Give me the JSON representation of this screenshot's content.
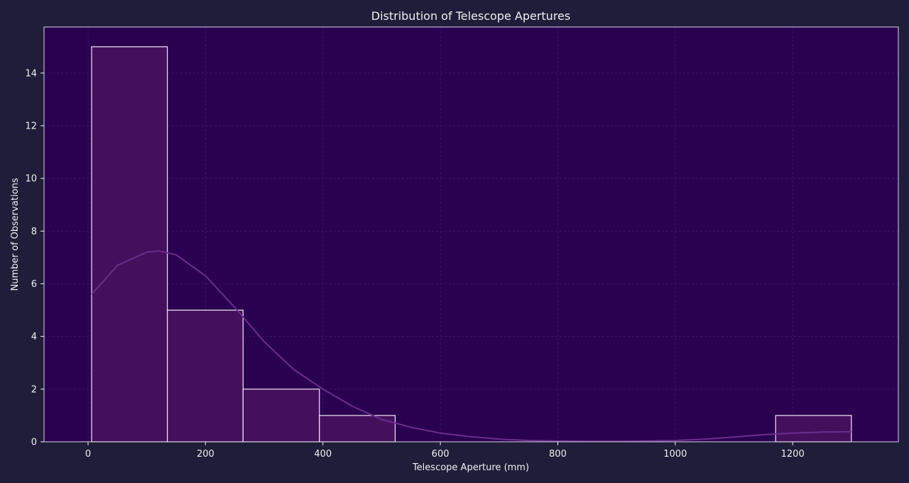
{
  "chart_data": {
    "type": "bar",
    "title": "Distribution of Telescope Apertures",
    "xlabel": "Telescope Aperture (mm)",
    "ylabel": "Number of Observations",
    "xlim": [
      -75,
      1380
    ],
    "ylim": [
      0,
      15.75
    ],
    "xticks": [
      0,
      200,
      400,
      600,
      800,
      1000,
      1200
    ],
    "yticks": [
      0,
      2,
      4,
      6,
      8,
      10,
      12,
      14
    ],
    "grid": true,
    "bins": [
      {
        "start": 6,
        "end": 135,
        "count": 15
      },
      {
        "start": 135,
        "end": 264,
        "count": 5
      },
      {
        "start": 264,
        "end": 394,
        "count": 2
      },
      {
        "start": 394,
        "end": 523,
        "count": 1
      },
      {
        "start": 1171,
        "end": 1300,
        "count": 1
      }
    ],
    "kde": {
      "x": [
        6,
        50,
        100,
        120,
        150,
        200,
        250,
        300,
        350,
        400,
        450,
        500,
        550,
        600,
        650,
        700,
        750,
        800,
        850,
        900,
        950,
        1000,
        1050,
        1100,
        1150,
        1200,
        1250,
        1300
      ],
      "y": [
        5.6,
        6.7,
        7.2,
        7.25,
        7.1,
        6.3,
        5.1,
        3.8,
        2.75,
        2.0,
        1.35,
        0.85,
        0.55,
        0.33,
        0.2,
        0.1,
        0.05,
        0.03,
        0.02,
        0.02,
        0.03,
        0.05,
        0.1,
        0.18,
        0.27,
        0.33,
        0.37,
        0.38
      ]
    },
    "colors": {
      "background": "#1e1e3a",
      "plot_area": "#2a0050",
      "bar_fill": "#44105e",
      "bar_edge": "#f2eaf6",
      "kde_line": "#6a2d8e",
      "grid": "#3e1c68",
      "text": "#f0f0f0"
    }
  }
}
